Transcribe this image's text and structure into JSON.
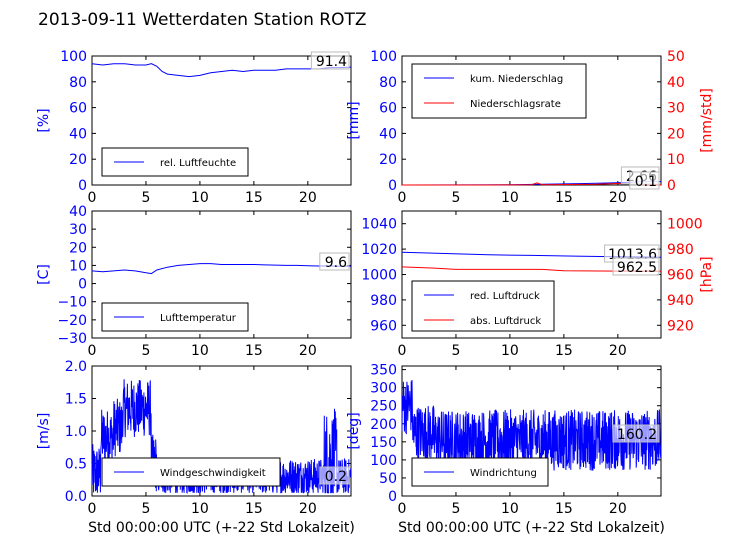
{
  "page": {
    "title": "2013-09-11 Wetterdaten Station ROTZ"
  },
  "colors": {
    "blue": "#0000ff",
    "red": "#ff0000",
    "black": "#000000"
  },
  "xaxis": {
    "range": [
      0,
      24
    ],
    "ticks": [
      "0",
      "5",
      "10",
      "15",
      "20"
    ],
    "label": "Std 00:00:00 UTC (+-22 Std Lokalzeit)"
  },
  "chart_data": [
    {
      "type": "line",
      "ylabel": "[%]",
      "ylim": [
        0,
        100
      ],
      "yticks": [
        "0",
        "20",
        "40",
        "60",
        "80",
        "100"
      ],
      "legend": {
        "placement": "lower-left"
      },
      "series": [
        {
          "name": "rel. Luftfeuchte",
          "x": [
            0,
            1,
            2,
            3,
            4,
            5,
            5.5,
            6,
            6.5,
            7,
            8,
            9,
            10,
            11,
            12,
            13,
            14,
            15,
            16,
            17,
            18,
            19,
            20,
            21,
            22,
            23,
            24
          ],
          "y": [
            94,
            93,
            94,
            94,
            93,
            93,
            94,
            92,
            88,
            86,
            85,
            84,
            85,
            87,
            88,
            89,
            88,
            89,
            89,
            89,
            90,
            90,
            90,
            90,
            91,
            91,
            91.4
          ]
        }
      ],
      "annotations": [
        {
          "text": "91.4"
        }
      ]
    },
    {
      "type": "line",
      "ylabel": "[mm]",
      "ylim": [
        0,
        100
      ],
      "yticks": [
        "0",
        "20",
        "40",
        "60",
        "80",
        "100"
      ],
      "ylabel2": "[mm/std]",
      "ylim2": [
        0,
        50
      ],
      "yticks2": [
        "0",
        "10",
        "20",
        "30",
        "40",
        "50"
      ],
      "legend": {
        "placement": "upper-left"
      },
      "series": [
        {
          "name": "kum. Niederschlag",
          "x": [
            0,
            10,
            13,
            17,
            20,
            22,
            24
          ],
          "y": [
            0,
            0.2,
            0.6,
            1.2,
            1.8,
            2.5,
            2.66
          ]
        },
        {
          "name": "Niederschlagsrate",
          "axis": "right",
          "x": [
            0,
            8,
            12,
            12.5,
            13,
            18,
            20,
            24
          ],
          "y": [
            0,
            0,
            0.1,
            0.8,
            0.1,
            0.3,
            0.6,
            0
          ]
        }
      ],
      "annotations": [
        {
          "text": "2.66"
        },
        {
          "text": "0.1"
        }
      ]
    },
    {
      "type": "line",
      "ylabel": "[C]",
      "ylim": [
        -30,
        40
      ],
      "yticks": [
        "−30",
        "−20",
        "−10",
        "0",
        "10",
        "20",
        "30",
        "40"
      ],
      "legend": {
        "placement": "lower-left"
      },
      "series": [
        {
          "name": "Lufttemperatur",
          "x": [
            0,
            1,
            2,
            3,
            4,
            5,
            5.5,
            6,
            7,
            8,
            9,
            10,
            11,
            12,
            13,
            14,
            15,
            16,
            17,
            18,
            19,
            20,
            21,
            22,
            23,
            24
          ],
          "y": [
            7,
            6.5,
            7,
            7.5,
            7,
            6,
            5.5,
            7.5,
            9,
            10,
            10.5,
            11,
            11,
            10.5,
            10.5,
            10.5,
            10.5,
            10.3,
            10.2,
            10,
            10,
            9.8,
            9.7,
            9.7,
            9.6,
            9.6
          ]
        }
      ],
      "annotations": [
        {
          "text": "9.6"
        }
      ]
    },
    {
      "type": "line",
      "ylabel2": "[hPa]",
      "ylim": [
        950,
        1050
      ],
      "yticks": [
        "960",
        "980",
        "1000",
        "1020",
        "1040"
      ],
      "ylim2": [
        910,
        1010
      ],
      "yticks2": [
        "920",
        "940",
        "960",
        "980",
        "1000"
      ],
      "legend": {
        "placement": "lower-left"
      },
      "series": [
        {
          "name": "red. Luftdruck",
          "x": [
            0,
            4,
            8,
            12,
            16,
            20,
            24
          ],
          "y": [
            1017.5,
            1016.5,
            1015.5,
            1015,
            1014.5,
            1014,
            1013.6
          ]
        },
        {
          "name": "abs. Luftdruck",
          "axis": "right",
          "x": [
            0,
            3,
            5,
            10,
            13,
            15,
            20,
            24
          ],
          "y": [
            966,
            965,
            964,
            964,
            964,
            963,
            962.7,
            962.5
          ]
        }
      ],
      "annotations": [
        {
          "text": "1013.6"
        },
        {
          "text": "962.5"
        }
      ]
    },
    {
      "type": "line",
      "ylabel": "[m/s]",
      "ylim": [
        0,
        2
      ],
      "yticks": [
        "0.0",
        "0.5",
        "1.0",
        "1.5",
        "2.0"
      ],
      "legend": {
        "placement": "lower-left"
      },
      "series": [
        {
          "name": "Windgeschwindigkeit",
          "points": 960
        }
      ],
      "annotations": [
        {
          "text": "0.2"
        }
      ]
    },
    {
      "type": "line",
      "ylabel": "[deg]",
      "ylim": [
        0,
        360
      ],
      "yticks": [
        "0",
        "50",
        "100",
        "150",
        "200",
        "250",
        "300",
        "350"
      ],
      "legend": {
        "placement": "lower-left"
      },
      "series": [
        {
          "name": "Windrichtung",
          "points": 960
        }
      ],
      "annotations": [
        {
          "text": "160.2"
        }
      ]
    }
  ]
}
